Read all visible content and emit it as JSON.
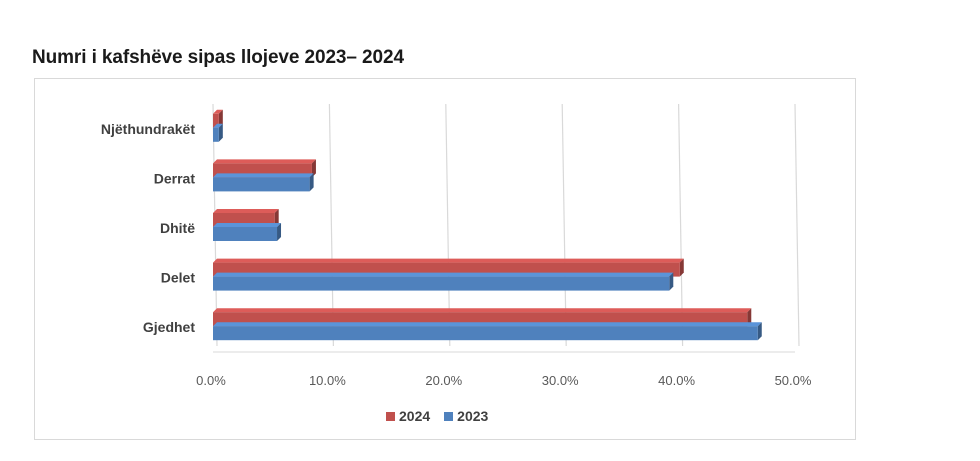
{
  "title": "Numri i kafshëve sipas llojeve 2023– 2024",
  "chart_data": {
    "type": "bar",
    "orientation": "horizontal",
    "categories": [
      "Njëthundrakët",
      "Derrat",
      "Dhitë",
      "Delet",
      "Gjedhet"
    ],
    "series": [
      {
        "name": "2024",
        "color": "#c0504d",
        "values": [
          0.5,
          8.5,
          5.3,
          40.1,
          45.9
        ]
      },
      {
        "name": "2023",
        "color": "#4f81bd",
        "values": [
          0.5,
          8.3,
          5.5,
          39.2,
          46.8
        ]
      }
    ],
    "xlim": [
      0,
      50
    ],
    "xticks": [
      "0.0%",
      "10.0%",
      "20.0%",
      "30.0%",
      "40.0%",
      "50.0%"
    ],
    "grid": true,
    "legend_position": "bottom"
  }
}
